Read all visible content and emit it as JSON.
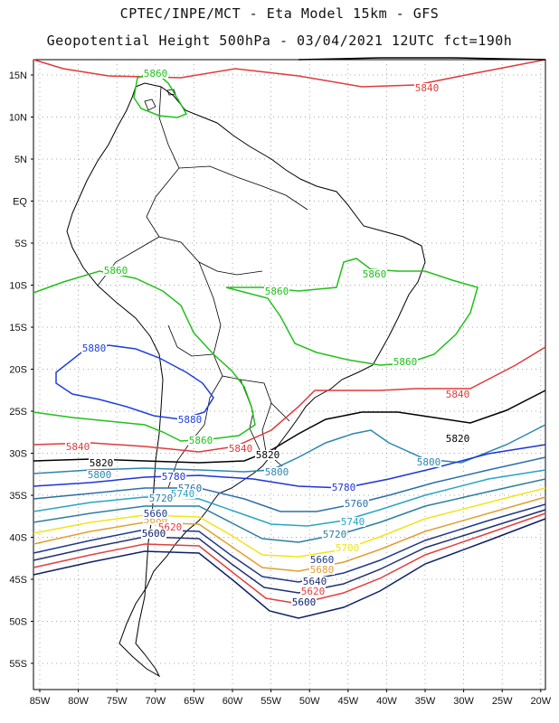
{
  "header": {
    "title_line1": "CPTEC/INPE/MCT -  Eta Model 15km - GFS",
    "title_line2": "Geopotential Height 500hPa - 03/04/2021 12UTC fct=190h"
  },
  "axes": {
    "lat_labels": [
      "15N",
      "10N",
      "5N",
      "EQ",
      "5S",
      "10S",
      "15S",
      "20S",
      "25S",
      "30S",
      "35S",
      "40S",
      "45S",
      "50S",
      "55S"
    ],
    "lon_labels": [
      "85W",
      "80W",
      "75W",
      "70W",
      "65W",
      "60W",
      "55W",
      "50W",
      "45W",
      "40W",
      "35W",
      "30W",
      "25W",
      "20W"
    ]
  },
  "colors": {
    "c5880": "#1f3fe0",
    "c5860": "#22c01c",
    "c5840": "#e03a3a",
    "c5820": "#000000",
    "c5800": "#2a86b0",
    "c5780": "#1e34d8",
    "c5760": "#2a6fa8",
    "c5740": "#2aa4c4",
    "c5720": "#2a7fa0",
    "c5700": "#f0e51a",
    "c5680": "#e0a030",
    "c5660": "#1e3a8a",
    "c5640": "#223070",
    "c5620": "#e04040",
    "c5600": "#0c1f66",
    "land": "#000000",
    "grid": "#8a8a8a"
  },
  "contour_labels": [
    {
      "text": "5840",
      "color": "c5840"
    },
    {
      "text": "5860",
      "color": "c5860"
    },
    {
      "text": "5860",
      "color": "c5860"
    },
    {
      "text": "5860",
      "color": "c5860"
    },
    {
      "text": "5860",
      "color": "c5860"
    },
    {
      "text": "5860",
      "color": "c5860"
    },
    {
      "text": "5860",
      "color": "c5860"
    },
    {
      "text": "5880",
      "color": "c5880"
    },
    {
      "text": "5880",
      "color": "c5880"
    },
    {
      "text": "5840",
      "color": "c5840"
    },
    {
      "text": "5840",
      "color": "c5840"
    },
    {
      "text": "5840",
      "color": "c5840"
    },
    {
      "text": "5820",
      "color": "c5820"
    },
    {
      "text": "5820",
      "color": "c5820"
    },
    {
      "text": "5820",
      "color": "c5820"
    },
    {
      "text": "5800",
      "color": "c5800"
    },
    {
      "text": "5800",
      "color": "c5800"
    },
    {
      "text": "5800",
      "color": "c5800"
    },
    {
      "text": "5780",
      "color": "c5780"
    },
    {
      "text": "5780",
      "color": "c5780"
    },
    {
      "text": "5760",
      "color": "c5760"
    },
    {
      "text": "5760",
      "color": "c5760"
    },
    {
      "text": "5740",
      "color": "c5740"
    },
    {
      "text": "5740",
      "color": "c5740"
    },
    {
      "text": "5720",
      "color": "c5720"
    },
    {
      "text": "5720",
      "color": "c5720"
    },
    {
      "text": "5700",
      "color": "c5700"
    },
    {
      "text": "5680",
      "color": "c5680"
    },
    {
      "text": "5680",
      "color": "c5680"
    },
    {
      "text": "5660",
      "color": "c5660"
    },
    {
      "text": "5660",
      "color": "c5660"
    },
    {
      "text": "5640",
      "color": "c5640"
    },
    {
      "text": "5620",
      "color": "c5620"
    },
    {
      "text": "5620",
      "color": "c5620"
    },
    {
      "text": "5600",
      "color": "c5600"
    },
    {
      "text": "5600",
      "color": "c5600"
    }
  ]
}
